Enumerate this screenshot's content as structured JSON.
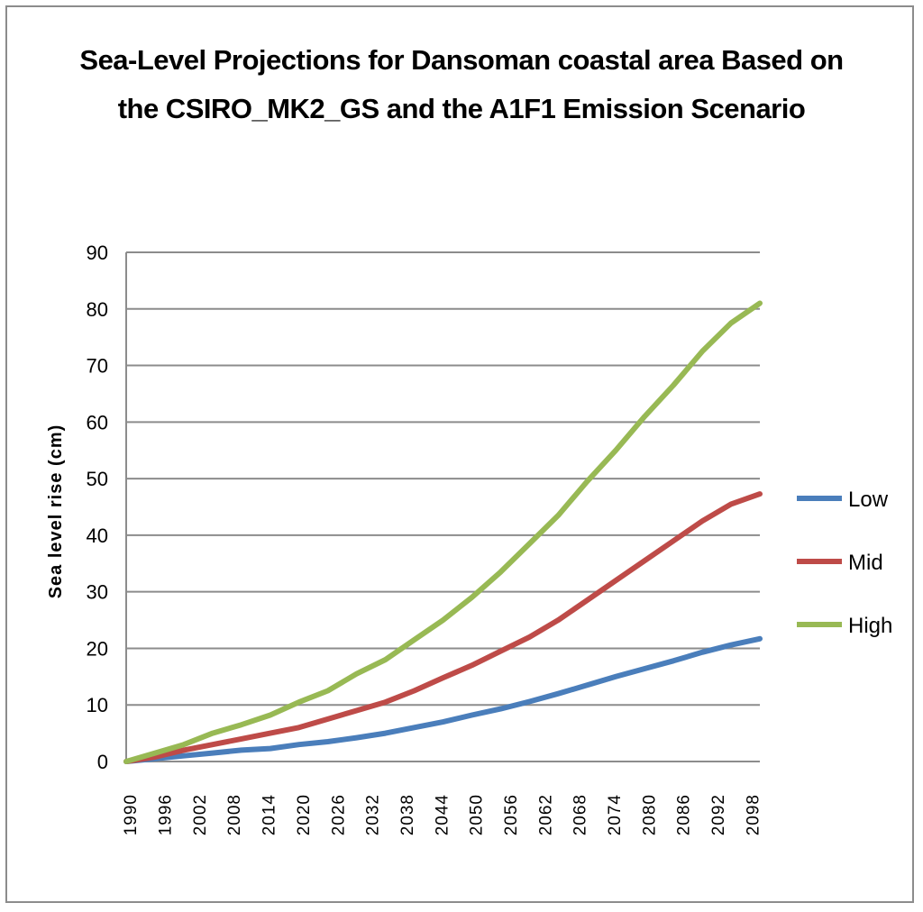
{
  "chart_data": {
    "type": "line",
    "title_lines": [
      "Sea-Level Projections for Dansoman coastal area Based on",
      "the CSIRO_MK2_GS and the A1F1 Emission Scenario"
    ],
    "xlabel": "",
    "ylabel": "Sea level rise  (cm)",
    "ylim": [
      0,
      90
    ],
    "yticks": [
      0,
      10,
      20,
      30,
      40,
      50,
      60,
      70,
      80,
      90
    ],
    "xlim": [
      1990,
      2100
    ],
    "xtick_labels": [
      "1990",
      "1996",
      "2002",
      "2008",
      "2014",
      "2020",
      "2026",
      "2032",
      "2038",
      "2044",
      "2050",
      "2056",
      "2062",
      "2068",
      "2074",
      "2080",
      "2086",
      "2092",
      "2098"
    ],
    "grid": true,
    "legend_position": "right",
    "x": [
      1990,
      1995,
      2000,
      2005,
      2010,
      2015,
      2020,
      2025,
      2030,
      2035,
      2040,
      2045,
      2050,
      2055,
      2060,
      2065,
      2070,
      2075,
      2080,
      2085,
      2090,
      2095,
      2100
    ],
    "series": [
      {
        "name": "Low",
        "color": "#4a7ebb",
        "values": [
          0,
          0.5,
          1,
          1.5,
          2,
          2.3,
          3,
          3.5,
          4.2,
          5,
          6,
          7,
          8.2,
          9.3,
          10.6,
          12,
          13.5,
          15,
          16.4,
          17.8,
          19.3,
          20.6,
          21.7
        ]
      },
      {
        "name": "Mid",
        "color": "#be4b48",
        "values": [
          0,
          0.8,
          2,
          3,
          4,
          5,
          6,
          7.5,
          9,
          10.5,
          12.5,
          14.8,
          17,
          19.5,
          22,
          25,
          28.5,
          32,
          35.5,
          39,
          42.5,
          45.5,
          47.3
        ]
      },
      {
        "name": "High",
        "color": "#98b954",
        "values": [
          0,
          1.5,
          3,
          5,
          6.5,
          8.2,
          10.5,
          12.5,
          15.5,
          18,
          21.5,
          25,
          29,
          33.5,
          38.5,
          43.5,
          49.5,
          55,
          61,
          66.5,
          72.5,
          77.5,
          81
        ]
      }
    ]
  }
}
